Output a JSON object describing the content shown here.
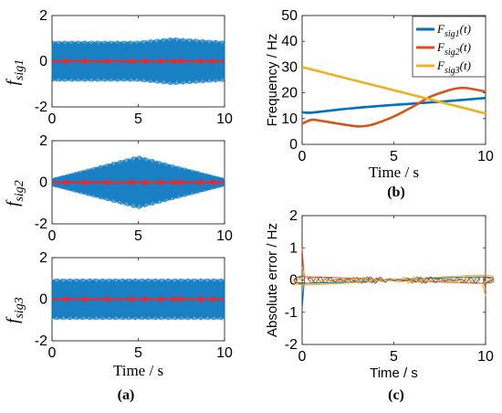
{
  "chart_data": [
    {
      "id": "a1",
      "type": "line",
      "ylabel": "f",
      "ylabel_sub": "sig1",
      "xlim": [
        0,
        10
      ],
      "ylim": [
        -2,
        2
      ],
      "x_ticks": [
        "0",
        "5",
        "10"
      ],
      "y_ticks": [
        "-2",
        "0",
        "2"
      ],
      "series": [
        {
          "role": "signal",
          "color": "#0072BD",
          "amplitude": [
            [
              0,
              0.9
            ],
            [
              5,
              0.9
            ],
            [
              7,
              1.05
            ],
            [
              10,
              0.9
            ]
          ]
        },
        {
          "role": "error",
          "color": "#FF2020",
          "amplitude": [
            [
              0,
              0.05
            ],
            [
              10,
              0.05
            ]
          ]
        }
      ]
    },
    {
      "id": "a2",
      "type": "line",
      "ylabel": "f",
      "ylabel_sub": "sig2",
      "xlim": [
        0,
        10
      ],
      "ylim": [
        -2,
        2
      ],
      "x_ticks": [
        "0",
        "5",
        "10"
      ],
      "y_ticks": [
        "-2",
        "0",
        "2"
      ],
      "series": [
        {
          "role": "signal",
          "color": "#0072BD",
          "amplitude": [
            [
              0,
              0.2
            ],
            [
              5,
              1.3
            ],
            [
              10,
              0.2
            ]
          ]
        },
        {
          "role": "error",
          "color": "#FF2020",
          "amplitude": [
            [
              0,
              0.05
            ],
            [
              10,
              0.05
            ]
          ]
        }
      ]
    },
    {
      "id": "a3",
      "type": "line",
      "ylabel": "f",
      "ylabel_sub": "sig3",
      "xlim": [
        0,
        10
      ],
      "ylim": [
        -2,
        2
      ],
      "x_ticks": [
        "0",
        "5",
        "10"
      ],
      "y_ticks": [
        "-2",
        "0",
        "2"
      ],
      "xlabel": "Time / s",
      "series": [
        {
          "role": "signal",
          "color": "#0072BD",
          "amplitude": [
            [
              0,
              1.0
            ],
            [
              10,
              1.0
            ]
          ]
        },
        {
          "role": "error",
          "color": "#FF2020",
          "amplitude": [
            [
              0,
              0.05
            ],
            [
              10,
              0.05
            ]
          ]
        }
      ]
    },
    {
      "id": "b",
      "type": "line",
      "xlabel": "Time / s",
      "ylabel": "Frequency / Hz",
      "xlim": [
        0,
        10
      ],
      "ylim": [
        0,
        50
      ],
      "x_ticks": [
        "0",
        "5",
        "10"
      ],
      "y_ticks": [
        "0",
        "10",
        "20",
        "30",
        "40",
        "50"
      ],
      "legend_position": "top-right",
      "series": [
        {
          "name": "F",
          "sub": "sig1",
          "suffix": "(t)",
          "color": "#0072BD",
          "x": [
            0,
            0.5,
            2,
            4,
            6,
            8,
            10
          ],
          "y": [
            12.5,
            12.3,
            13.5,
            14.8,
            15.8,
            16.8,
            18
          ]
        },
        {
          "name": "F",
          "sub": "sig2",
          "suffix": "(t)",
          "color": "#D95319",
          "x": [
            0,
            0.5,
            1,
            2,
            3,
            3.5,
            4,
            5,
            6,
            7,
            8,
            8.5,
            9,
            10
          ],
          "y": [
            8,
            9.5,
            9.2,
            8,
            7,
            7.2,
            8,
            10.8,
            14.5,
            18.5,
            21,
            21.8,
            21.8,
            20.5
          ]
        },
        {
          "name": "F",
          "sub": "sig3",
          "suffix": "(t)",
          "color": "#EDB120",
          "x": [
            0,
            10
          ],
          "y": [
            30,
            12
          ]
        }
      ]
    },
    {
      "id": "c",
      "type": "line",
      "xlabel": "Time / s",
      "ylabel": "Absolute error / Hz",
      "xlim": [
        0,
        10
      ],
      "ylim": [
        -2,
        2
      ],
      "x_ticks": [
        "0",
        "5",
        "10"
      ],
      "y_ticks": [
        "-2",
        "-1",
        "0",
        "1",
        "2"
      ],
      "series": [
        {
          "color": "#0072BD",
          "x": [
            0,
            0.15,
            0.3,
            9.7,
            9.85,
            10
          ],
          "y": [
            -0.9,
            0.1,
            -0.1,
            0.1,
            -0.1,
            0.2
          ]
        },
        {
          "color": "#D95319",
          "x": [
            0,
            0.15,
            0.3,
            9.7,
            9.85,
            10
          ],
          "y": [
            1.0,
            -0.1,
            0.1,
            -0.1,
            0.1,
            -0.3
          ]
        },
        {
          "color": "#EDB120",
          "x": [
            0,
            0.15,
            0.3,
            9.7,
            9.85,
            10
          ],
          "y": [
            0.4,
            0.15,
            -0.15,
            0.15,
            -0.15,
            -0.5
          ]
        }
      ]
    }
  ],
  "captions": {
    "a": "(a)",
    "b": "(b)",
    "c": "(c)"
  }
}
